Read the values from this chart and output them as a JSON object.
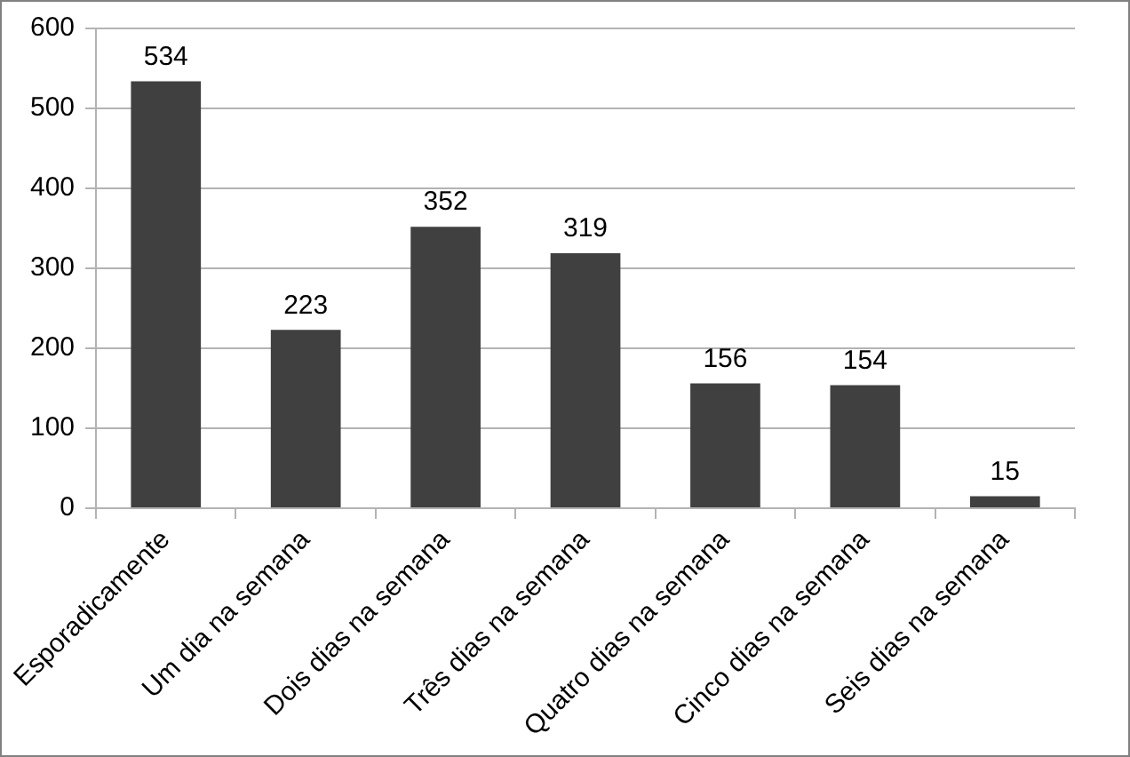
{
  "chart_data": {
    "type": "bar",
    "categories": [
      "Esporadicamente",
      "Um dia na semana",
      "Dois dias na semana",
      "Três dias na semana",
      "Quatro dias na semana",
      "Cinco dias na semana",
      "Seis dias na semana"
    ],
    "values": [
      534,
      223,
      352,
      319,
      156,
      154,
      15
    ],
    "color": "#404040",
    "ylim": [
      0,
      600
    ],
    "yticks": [
      0,
      100,
      200,
      300,
      400,
      500,
      600
    ],
    "grid": "y",
    "data_labels": true
  }
}
